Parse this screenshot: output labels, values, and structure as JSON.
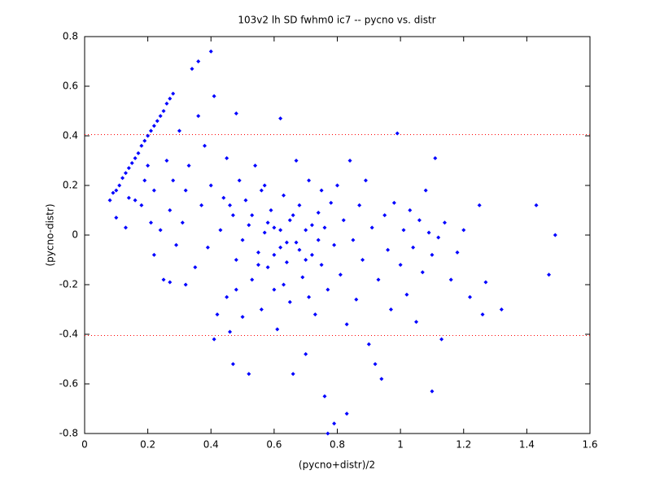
{
  "chart_data": {
    "type": "scatter",
    "title": "103v2 lh SD fwhm0 ic7 -- pycno vs. distr",
    "xlabel": "(pycno+distr)/2",
    "ylabel": "(pycno-distr)",
    "color": "#0000ff",
    "xlim": [
      0,
      1.6
    ],
    "xticks": [
      0,
      0.2,
      0.4,
      0.6,
      0.8,
      1,
      1.2,
      1.4,
      1.6
    ],
    "ylim": [
      -0.8,
      0.8
    ],
    "yticks": [
      -0.8,
      -0.6,
      -0.4,
      -0.2,
      0,
      0.2,
      0.4,
      0.6,
      0.8
    ],
    "hlines": [
      0.405,
      -0.405
    ],
    "hline_color": "#ff0000",
    "x": [
      0.08,
      0.09,
      0.1,
      0.11,
      0.12,
      0.13,
      0.14,
      0.15,
      0.16,
      0.17,
      0.18,
      0.19,
      0.2,
      0.21,
      0.22,
      0.23,
      0.24,
      0.25,
      0.26,
      0.27,
      0.28,
      0.1,
      0.13,
      0.14,
      0.16,
      0.18,
      0.19,
      0.2,
      0.21,
      0.22,
      0.22,
      0.24,
      0.25,
      0.26,
      0.27,
      0.27,
      0.28,
      0.29,
      0.3,
      0.31,
      0.32,
      0.32,
      0.33,
      0.34,
      0.35,
      0.36,
      0.36,
      0.37,
      0.38,
      0.39,
      0.4,
      0.4,
      0.41,
      0.41,
      0.42,
      0.43,
      0.44,
      0.45,
      0.45,
      0.46,
      0.47,
      0.47,
      0.48,
      0.48,
      0.49,
      0.5,
      0.5,
      0.51,
      0.52,
      0.52,
      0.53,
      0.54,
      0.55,
      0.56,
      0.56,
      0.57,
      0.58,
      0.59,
      0.6,
      0.6,
      0.61,
      0.62,
      0.62,
      0.63,
      0.64,
      0.65,
      0.65,
      0.66,
      0.67,
      0.67,
      0.68,
      0.69,
      0.7,
      0.7,
      0.71,
      0.72,
      0.73,
      0.74,
      0.75,
      0.76,
      0.76,
      0.77,
      0.77,
      0.78,
      0.79,
      0.79,
      0.8,
      0.81,
      0.82,
      0.83,
      0.83,
      0.84,
      0.85,
      0.86,
      0.87,
      0.88,
      0.89,
      0.9,
      0.91,
      0.92,
      0.93,
      0.94,
      0.95,
      0.96,
      0.97,
      0.98,
      0.99,
      1.0,
      1.01,
      1.02,
      1.03,
      1.04,
      1.05,
      1.06,
      1.07,
      1.08,
      1.09,
      1.1,
      1.1,
      1.11,
      1.12,
      1.13,
      1.14,
      1.16,
      1.18,
      1.2,
      1.22,
      1.25,
      1.26,
      1.27,
      1.32,
      1.43,
      1.47,
      1.49,
      0.53,
      0.55,
      0.58,
      0.6,
      0.62,
      0.64,
      0.66,
      0.68,
      0.7,
      0.72,
      0.74,
      0.57,
      0.63,
      0.48,
      0.46,
      0.75,
      0.71
    ],
    "y": [
      0.14,
      0.17,
      0.18,
      0.2,
      0.23,
      0.25,
      0.27,
      0.29,
      0.31,
      0.33,
      0.36,
      0.38,
      0.4,
      0.42,
      0.44,
      0.46,
      0.48,
      0.5,
      0.53,
      0.55,
      0.57,
      0.07,
      0.03,
      0.15,
      0.14,
      0.12,
      0.22,
      0.28,
      0.05,
      0.18,
      -0.08,
      0.02,
      -0.18,
      0.3,
      -0.19,
      0.1,
      0.22,
      -0.04,
      0.42,
      0.05,
      -0.2,
      0.18,
      0.28,
      0.67,
      -0.13,
      0.7,
      0.48,
      0.12,
      0.36,
      -0.05,
      0.74,
      0.2,
      0.56,
      -0.42,
      -0.32,
      0.02,
      0.15,
      -0.25,
      0.31,
      -0.39,
      -0.52,
      0.08,
      0.49,
      -0.1,
      0.22,
      -0.02,
      -0.33,
      0.14,
      -0.56,
      0.04,
      -0.18,
      0.28,
      -0.07,
      0.18,
      -0.3,
      0.01,
      -0.13,
      0.1,
      -0.22,
      0.03,
      -0.38,
      0.47,
      -0.05,
      0.16,
      -0.11,
      0.06,
      -0.27,
      -0.56,
      0.3,
      -0.03,
      0.12,
      -0.17,
      -0.48,
      0.02,
      0.22,
      -0.08,
      -0.32,
      0.09,
      -0.12,
      -0.65,
      0.03,
      -0.8,
      -0.22,
      0.13,
      -0.76,
      -0.04,
      0.2,
      -0.16,
      0.06,
      -0.72,
      -0.36,
      0.3,
      -0.02,
      -0.26,
      0.12,
      -0.1,
      0.22,
      -0.44,
      0.03,
      -0.52,
      -0.18,
      -0.58,
      0.08,
      -0.06,
      -0.3,
      0.13,
      0.41,
      -0.12,
      0.02,
      -0.24,
      0.1,
      -0.05,
      -0.35,
      0.06,
      -0.15,
      0.18,
      0.01,
      -0.63,
      -0.08,
      0.31,
      -0.01,
      -0.42,
      0.05,
      -0.18,
      -0.07,
      0.02,
      -0.25,
      0.12,
      -0.32,
      -0.19,
      -0.3,
      0.12,
      -0.16,
      0,
      0.08,
      -0.12,
      0.05,
      -0.08,
      0.02,
      -0.03,
      0.08,
      -0.06,
      -0.1,
      0.04,
      -0.02,
      0.2,
      -0.2,
      -0.22,
      0.12,
      0.18,
      -0.25
    ]
  }
}
